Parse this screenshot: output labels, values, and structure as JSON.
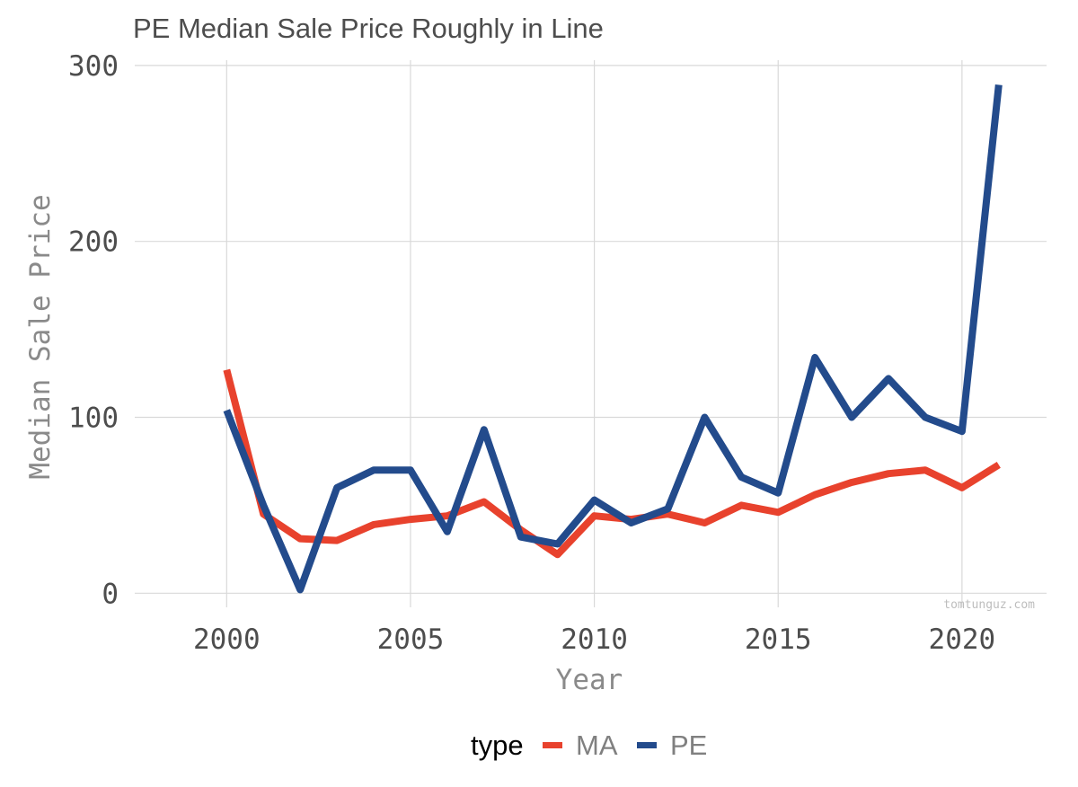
{
  "chart_data": {
    "type": "line",
    "title": "PE Median Sale Price Roughly in Line",
    "xlabel": "Year",
    "ylabel": "Median Sale Price",
    "xlim": [
      1997.5,
      2022.3
    ],
    "ylim": [
      -8,
      303
    ],
    "x_ticks": [
      2000,
      2005,
      2010,
      2015,
      2020
    ],
    "y_ticks": [
      0,
      100,
      200,
      300
    ],
    "grid": true,
    "legend": {
      "title": "type",
      "position": "bottom"
    },
    "watermark": "tomtunguz.com",
    "x": [
      2000,
      2001,
      2002,
      2003,
      2004,
      2005,
      2006,
      2007,
      2008,
      2009,
      2010,
      2011,
      2012,
      2013,
      2014,
      2015,
      2016,
      2017,
      2018,
      2019,
      2020,
      2021
    ],
    "series": [
      {
        "name": "MA",
        "color": "#e8422d",
        "values": [
          127,
          45,
          31,
          30,
          39,
          42,
          44,
          52,
          36,
          22,
          44,
          42,
          45,
          40,
          50,
          46,
          56,
          63,
          68,
          70,
          60,
          73
        ]
      },
      {
        "name": "PE",
        "color": "#234b8c",
        "values": [
          104,
          50,
          2,
          60,
          70,
          70,
          35,
          93,
          32,
          28,
          53,
          40,
          48,
          100,
          66,
          57,
          134,
          100,
          122,
          100,
          92,
          289
        ]
      }
    ]
  }
}
